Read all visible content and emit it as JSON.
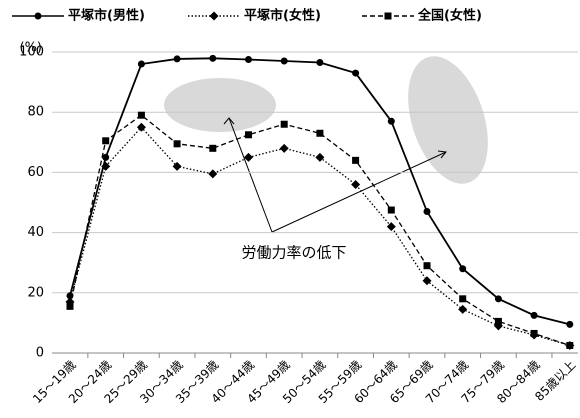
{
  "chart_data": {
    "type": "line",
    "y_label": "(%)",
    "annotation": "労働力率の低下",
    "categories": [
      "15～19歳",
      "20～24歳",
      "25～29歳",
      "30～34歳",
      "35～39歳",
      "40～44歳",
      "45～49歳",
      "50～54歳",
      "55～59歳",
      "60～64歳",
      "65～69歳",
      "70～74歳",
      "75～79歳",
      "80～84歳",
      "85歳以上"
    ],
    "series": [
      {
        "name": "平塚市(男性)",
        "color": "#000000",
        "dash": "solid",
        "marker": "circle",
        "values": [
          19,
          65,
          96,
          97.7,
          97.9,
          97.5,
          97,
          96.5,
          93,
          77,
          47,
          28,
          18,
          12.5,
          9.5
        ]
      },
      {
        "name": "平塚市(女性)",
        "color": "#000000",
        "dash": "dotted",
        "marker": "diamond",
        "values": [
          17,
          62,
          75,
          62,
          59.5,
          65,
          68,
          65,
          56,
          42,
          24,
          14.5,
          9,
          6,
          2.5
        ]
      },
      {
        "name": "全国(女性)",
        "color": "#000000",
        "dash": "dashed",
        "marker": "square",
        "values": [
          15.5,
          70.5,
          79,
          69.5,
          68,
          72.5,
          76,
          73,
          64,
          47.5,
          29,
          18,
          10.5,
          6.5,
          2.5
        ]
      }
    ],
    "ylim": [
      0,
      100
    ],
    "yticks": [
      0,
      20,
      40,
      60,
      80,
      100
    ],
    "grid": true
  }
}
